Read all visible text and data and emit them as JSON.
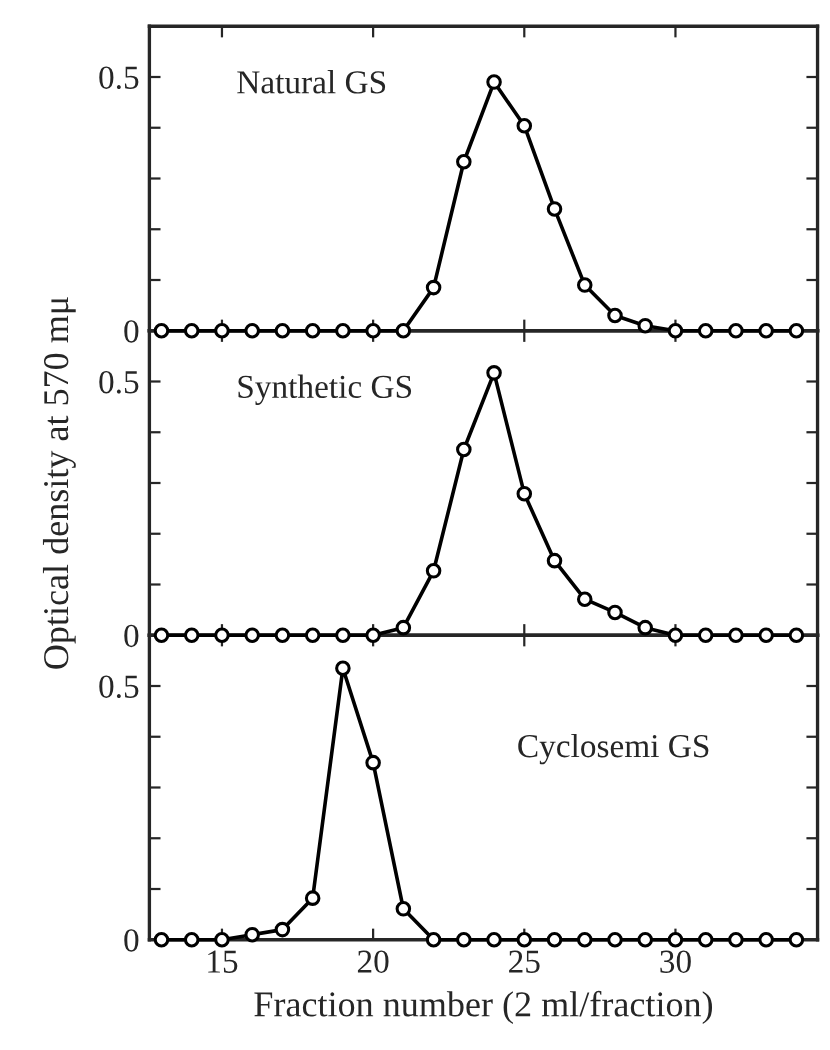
{
  "chart_data": [
    {
      "type": "line",
      "x": [
        13,
        14,
        15,
        16,
        17,
        18,
        19,
        20,
        21,
        22,
        23,
        24,
        25,
        26,
        27,
        28,
        29,
        30,
        31,
        32,
        33,
        34
      ],
      "marker": "circle",
      "tick_labels": "y",
      "series": [
        {
          "color": "#000000",
          "values": [
            0,
            0,
            0,
            0,
            0,
            0,
            0,
            0,
            0,
            0.085,
            0.333,
            0.49,
            0.404,
            0.24,
            0.09,
            0.03,
            0.01,
            0,
            0,
            0,
            0,
            0
          ]
        }
      ],
      "annotations": [
        "Natural GS"
      ],
      "xlim": [
        12.6,
        34.7
      ],
      "ylim": [
        0,
        0.6
      ],
      "xticks": [
        15,
        20,
        25,
        30
      ],
      "yticks": [
        0,
        {
          "value": 0.1,
          "label": null
        },
        {
          "value": 0.2,
          "label": null
        },
        {
          "value": 0.3,
          "label": null
        },
        {
          "value": 0.4,
          "label": null
        },
        0.5
      ]
    },
    {
      "type": "line",
      "x": [
        13,
        14,
        15,
        16,
        17,
        18,
        19,
        20,
        21,
        22,
        23,
        24,
        25,
        26,
        27,
        28,
        29,
        30,
        31,
        32,
        33,
        34
      ],
      "marker": "circle",
      "tick_labels": "y",
      "ylabel": "Optical density at 570 mμ",
      "series": [
        {
          "color": "#000000",
          "values": [
            0,
            0,
            0,
            0,
            0,
            0,
            0,
            0,
            0.015,
            0.127,
            0.366,
            0.517,
            0.279,
            0.147,
            0.071,
            0.045,
            0.015,
            0,
            0,
            0,
            0,
            0
          ]
        }
      ],
      "annotations": [
        "Synthetic GS"
      ],
      "xlim": [
        12.6,
        34.7
      ],
      "ylim": [
        0,
        0.6
      ],
      "xticks": [
        15,
        20,
        25,
        30
      ],
      "yticks": [
        0,
        {
          "value": 0.1,
          "label": null
        },
        {
          "value": 0.2,
          "label": null
        },
        {
          "value": 0.3,
          "label": null
        },
        {
          "value": 0.4,
          "label": null
        },
        0.5
      ]
    },
    {
      "type": "line",
      "x": [
        13,
        14,
        15,
        16,
        17,
        18,
        19,
        20,
        21,
        22,
        23,
        24,
        25,
        26,
        27,
        28,
        29,
        30,
        31,
        32,
        33,
        34
      ],
      "marker": "circle",
      "xlabel": "Fraction number (2 ml/fraction)",
      "series": [
        {
          "color": "#000000",
          "values": [
            0,
            0,
            0,
            0.01,
            0.02,
            0.082,
            0.535,
            0.349,
            0.061,
            0,
            0,
            0,
            0,
            0,
            0,
            0,
            0,
            0,
            0,
            0,
            0,
            0
          ]
        }
      ],
      "annotations": [
        "Cyclosemi GS"
      ],
      "xlim": [
        12.6,
        34.7
      ],
      "ylim": [
        0,
        0.6
      ],
      "xticks": [
        15,
        20,
        25,
        30
      ],
      "yticks": [
        0,
        {
          "value": 0.1,
          "label": null
        },
        {
          "value": 0.2,
          "label": null
        },
        {
          "value": 0.3,
          "label": null
        },
        {
          "value": 0.4,
          "label": null
        },
        0.5
      ]
    }
  ]
}
